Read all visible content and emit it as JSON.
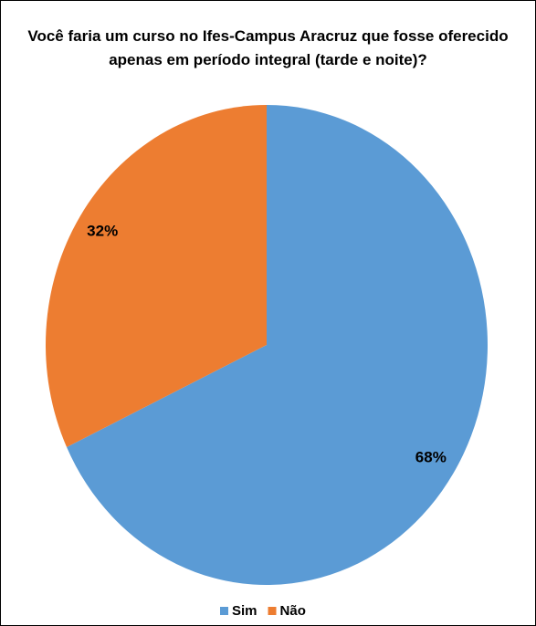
{
  "chart_data": {
    "type": "pie",
    "title": "Você faria um curso no Ifes-Campus Aracruz que fosse oferecido apenas em período integral (tarde e noite)?",
    "categories": [
      "Sim",
      "Não"
    ],
    "values": [
      68,
      32
    ],
    "value_labels": [
      "68%",
      "32%"
    ],
    "colors": [
      "#5b9bd5",
      "#ed7d31"
    ],
    "legend": "bottom"
  }
}
